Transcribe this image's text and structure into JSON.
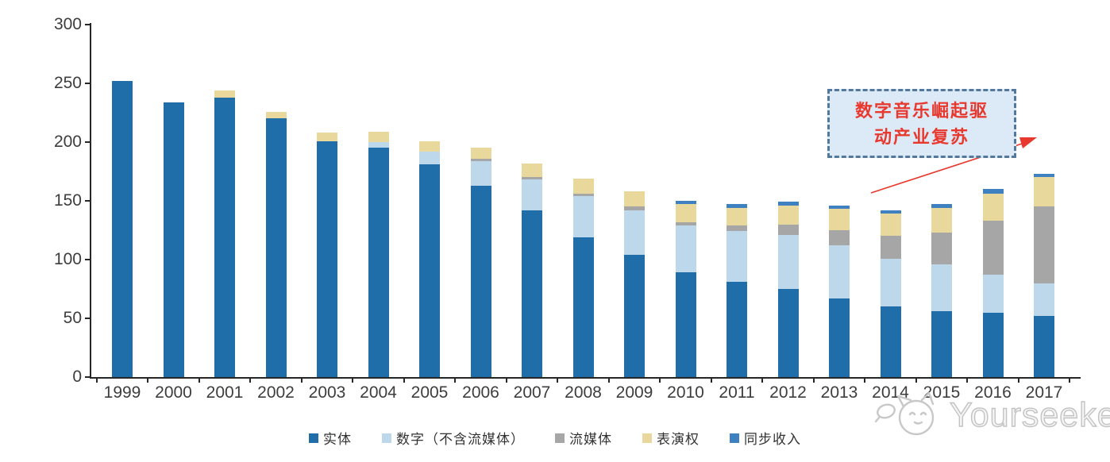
{
  "chart_data": {
    "type": "bar",
    "stacked": true,
    "title": "",
    "xlabel": "",
    "ylabel": "",
    "ylim": [
      0,
      300
    ],
    "yticks": [
      0,
      50,
      100,
      150,
      200,
      250,
      300
    ],
    "grid": false,
    "legend_position": "bottom",
    "categories": [
      "1999",
      "2000",
      "2001",
      "2002",
      "2003",
      "2004",
      "2005",
      "2006",
      "2007",
      "2008",
      "2009",
      "2010",
      "2011",
      "2012",
      "2013",
      "2014",
      "2015",
      "2016",
      "2017"
    ],
    "series": [
      {
        "name": "实体",
        "color": "#1f6ea9",
        "values": [
          252,
          234,
          238,
          220,
          201,
          195,
          181,
          163,
          142,
          119,
          104,
          89,
          81,
          75,
          67,
          60,
          56,
          55,
          52
        ]
      },
      {
        "name": "数字（不含流媒体）",
        "color": "#bdd7eb",
        "values": [
          0,
          0,
          0,
          0,
          0,
          5,
          11,
          21,
          26,
          35,
          38,
          40,
          43,
          46,
          45,
          41,
          40,
          32,
          28
        ]
      },
      {
        "name": "流媒体",
        "color": "#a6a6a6",
        "values": [
          0,
          0,
          0,
          0,
          0,
          0,
          0,
          2,
          2,
          2,
          3,
          3,
          5,
          9,
          13,
          19,
          27,
          46,
          65
        ]
      },
      {
        "name": "表演权",
        "color": "#e9d89b",
        "values": [
          0,
          0,
          6,
          6,
          7,
          9,
          9,
          9,
          12,
          13,
          13,
          15,
          15,
          16,
          18,
          19,
          21,
          23,
          25
        ]
      },
      {
        "name": "同步收入",
        "color": "#3e80c0",
        "values": [
          0,
          0,
          0,
          0,
          0,
          0,
          0,
          0,
          0,
          0,
          0,
          3,
          3,
          3,
          3,
          3,
          3,
          4,
          3
        ]
      }
    ]
  },
  "annotation": {
    "text": "数字音乐崛起驱\n动产业复苏",
    "text_color": "#e8392e",
    "border_color": "#54779c",
    "fill_color": "#dce9f7",
    "arrow_color": "#e8392e"
  },
  "watermark": {
    "text": "Yourseeker",
    "icon": "cat-face-icon",
    "color": "#c3c3c3"
  },
  "colors": {
    "axis": "#262626",
    "tick_text": "#3d3d3d",
    "background": "#ffffff"
  }
}
